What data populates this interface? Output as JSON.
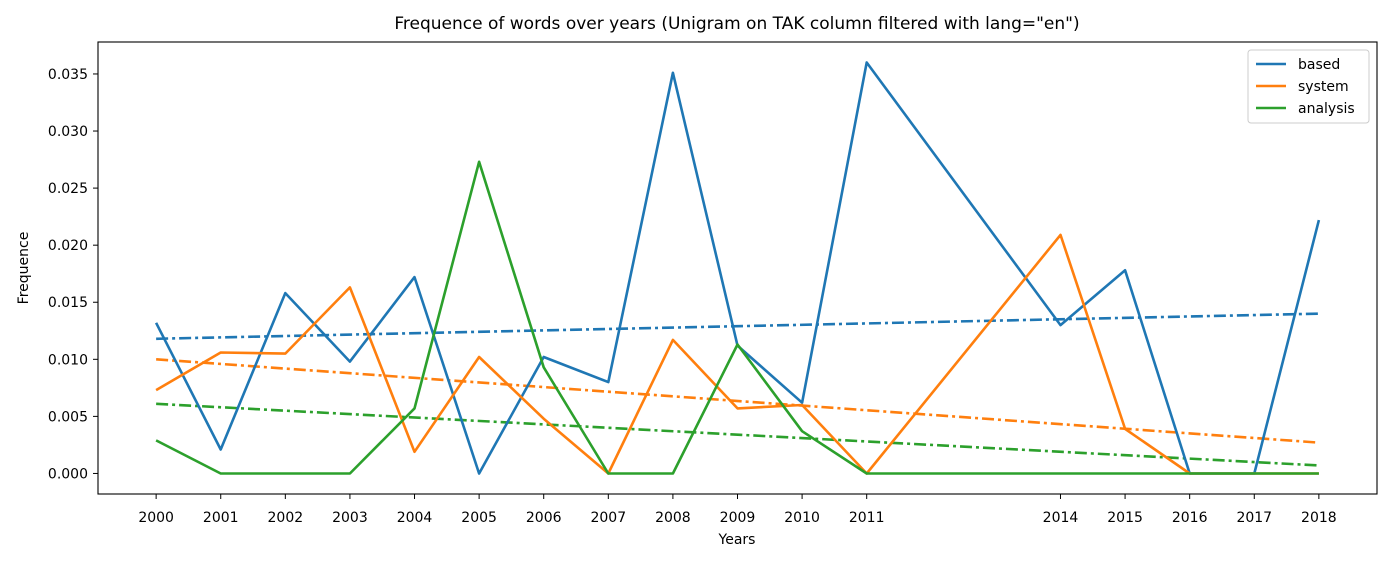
{
  "chart_data": {
    "type": "line",
    "title": "Frequence of words over years (Unigram on TAK column filtered with lang=\"en\")",
    "xlabel": "Years",
    "ylabel": "Frequence",
    "x": [
      2000,
      2001,
      2002,
      2003,
      2004,
      2005,
      2006,
      2007,
      2008,
      2009,
      2010,
      2011,
      2014,
      2015,
      2016,
      2017,
      2018
    ],
    "x_tick_labels": [
      "2000",
      "2001",
      "2002",
      "2003",
      "2004",
      "2005",
      "2006",
      "2007",
      "2008",
      "2009",
      "2010",
      "2011",
      "2014",
      "2015",
      "2016",
      "2017",
      "2018"
    ],
    "xlim": [
      1999.1,
      2018.9
    ],
    "ylim": [
      -0.0018,
      0.0378
    ],
    "y_ticks": [
      0.0,
      0.005,
      0.01,
      0.015,
      0.02,
      0.025,
      0.03,
      0.035
    ],
    "y_tick_labels": [
      "0.000",
      "0.005",
      "0.010",
      "0.015",
      "0.020",
      "0.025",
      "0.030",
      "0.035"
    ],
    "grid": false,
    "legend_position": "top-right",
    "series": [
      {
        "name": "based",
        "color": "#1f77b4",
        "values": [
          0.0132,
          0.0021,
          0.0158,
          0.0098,
          0.0172,
          0.0,
          0.0102,
          0.008,
          0.0351,
          0.0112,
          0.0062,
          0.036,
          0.013,
          0.0178,
          0.0,
          0.0,
          0.0222
        ],
        "trend": [
          0.0118,
          0.014
        ]
      },
      {
        "name": "system",
        "color": "#ff7f0e",
        "values": [
          0.0073,
          0.0106,
          0.0105,
          0.0163,
          0.0019,
          0.0102,
          0.0048,
          0.0,
          0.0117,
          0.0057,
          0.006,
          0.0,
          0.0209,
          0.0039,
          0.0,
          0.0,
          0.0
        ],
        "trend": [
          0.01,
          0.0027
        ]
      },
      {
        "name": "analysis",
        "color": "#2ca02c",
        "values": [
          0.0029,
          0.0,
          0.0,
          0.0,
          0.0057,
          0.0273,
          0.0093,
          0.0,
          0.0,
          0.0113,
          0.0037,
          0.0,
          0.0,
          0.0,
          0.0,
          0.0,
          0.0
        ],
        "trend": [
          0.0061,
          0.0007
        ]
      }
    ]
  }
}
